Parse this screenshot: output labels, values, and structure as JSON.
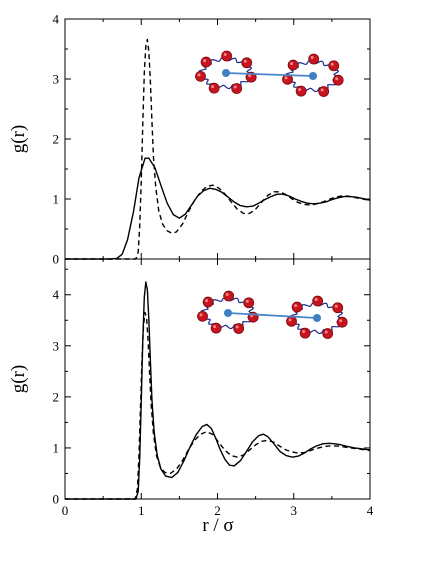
{
  "colors": {
    "curve": "#000000",
    "bead_red": "#c8141e",
    "chain_blue": "#1e2a8c",
    "bond_blue": "#4a86c8",
    "center_blue": "#3f7fc4"
  },
  "icons": {
    "top_inset": "two-ring-molecules-icon",
    "bottom_inset": "two-ring-molecules-icon"
  },
  "chart_data": [
    {
      "type": "line",
      "panel": "top",
      "ylabel": "g(r)",
      "xlabel": "",
      "xlim": [
        0,
        4
      ],
      "ylim": [
        0,
        4
      ],
      "x_ticks": [
        "0",
        "1",
        "2",
        "3",
        "4"
      ],
      "y_ticks": [
        "0",
        "1",
        "2",
        "3",
        "4"
      ],
      "grid": false,
      "legend": "none",
      "series": [
        {
          "style": "solid",
          "points": [
            [
              0,
              0
            ],
            [
              0.6,
              0
            ],
            [
              0.68,
              0.01
            ],
            [
              0.75,
              0.08
            ],
            [
              0.82,
              0.32
            ],
            [
              0.9,
              0.8
            ],
            [
              0.97,
              1.35
            ],
            [
              1.05,
              1.68
            ],
            [
              1.1,
              1.68
            ],
            [
              1.18,
              1.52
            ],
            [
              1.26,
              1.22
            ],
            [
              1.34,
              0.93
            ],
            [
              1.42,
              0.74
            ],
            [
              1.5,
              0.68
            ],
            [
              1.58,
              0.75
            ],
            [
              1.66,
              0.9
            ],
            [
              1.74,
              1.05
            ],
            [
              1.82,
              1.14
            ],
            [
              1.9,
              1.18
            ],
            [
              1.98,
              1.16
            ],
            [
              2.06,
              1.11
            ],
            [
              2.14,
              1.03
            ],
            [
              2.22,
              0.95
            ],
            [
              2.3,
              0.89
            ],
            [
              2.38,
              0.87
            ],
            [
              2.46,
              0.88
            ],
            [
              2.54,
              0.93
            ],
            [
              2.62,
              0.99
            ],
            [
              2.7,
              1.04
            ],
            [
              2.78,
              1.08
            ],
            [
              2.86,
              1.08
            ],
            [
              2.94,
              1.05
            ],
            [
              3.02,
              1.0
            ],
            [
              3.1,
              0.96
            ],
            [
              3.18,
              0.93
            ],
            [
              3.26,
              0.92
            ],
            [
              3.34,
              0.93
            ],
            [
              3.42,
              0.95
            ],
            [
              3.5,
              0.99
            ],
            [
              3.58,
              1.02
            ],
            [
              3.66,
              1.04
            ],
            [
              3.74,
              1.04
            ],
            [
              3.82,
              1.03
            ],
            [
              3.9,
              1.01
            ],
            [
              4.0,
              0.98
            ]
          ]
        },
        {
          "style": "dashed",
          "points": [
            [
              0,
              0
            ],
            [
              0.93,
              0
            ],
            [
              0.96,
              0.12
            ],
            [
              0.98,
              0.55
            ],
            [
              1.0,
              1.3
            ],
            [
              1.02,
              2.25
            ],
            [
              1.04,
              3.1
            ],
            [
              1.06,
              3.55
            ],
            [
              1.08,
              3.66
            ],
            [
              1.1,
              3.45
            ],
            [
              1.12,
              2.95
            ],
            [
              1.14,
              2.3
            ],
            [
              1.16,
              1.7
            ],
            [
              1.19,
              1.2
            ],
            [
              1.23,
              0.8
            ],
            [
              1.28,
              0.58
            ],
            [
              1.34,
              0.47
            ],
            [
              1.4,
              0.43
            ],
            [
              1.46,
              0.45
            ],
            [
              1.54,
              0.58
            ],
            [
              1.62,
              0.79
            ],
            [
              1.7,
              0.98
            ],
            [
              1.78,
              1.12
            ],
            [
              1.86,
              1.21
            ],
            [
              1.94,
              1.23
            ],
            [
              2.02,
              1.18
            ],
            [
              2.1,
              1.08
            ],
            [
              2.18,
              0.95
            ],
            [
              2.26,
              0.83
            ],
            [
              2.34,
              0.76
            ],
            [
              2.42,
              0.76
            ],
            [
              2.5,
              0.83
            ],
            [
              2.58,
              0.95
            ],
            [
              2.66,
              1.06
            ],
            [
              2.74,
              1.12
            ],
            [
              2.82,
              1.12
            ],
            [
              2.9,
              1.07
            ],
            [
              2.98,
              1.0
            ],
            [
              3.06,
              0.94
            ],
            [
              3.14,
              0.91
            ],
            [
              3.22,
              0.9
            ],
            [
              3.3,
              0.92
            ],
            [
              3.38,
              0.95
            ],
            [
              3.46,
              0.99
            ],
            [
              3.54,
              1.03
            ],
            [
              3.62,
              1.05
            ],
            [
              3.7,
              1.05
            ],
            [
              3.78,
              1.03
            ],
            [
              3.86,
              1.01
            ],
            [
              3.94,
              0.99
            ],
            [
              4.0,
              0.98
            ]
          ]
        }
      ]
    },
    {
      "type": "line",
      "panel": "bottom",
      "ylabel": "g(r)",
      "xlabel": "r / σ",
      "xlim": [
        0,
        4
      ],
      "ylim": [
        0,
        4.7
      ],
      "x_ticks": [
        "0",
        "1",
        "2",
        "3",
        "4"
      ],
      "y_ticks": [
        "0",
        "1",
        "2",
        "3",
        "4"
      ],
      "grid": false,
      "legend": "none",
      "series": [
        {
          "style": "solid",
          "points": [
            [
              0,
              0
            ],
            [
              0.93,
              0
            ],
            [
              0.96,
              0.15
            ],
            [
              0.98,
              0.8
            ],
            [
              1.0,
              1.9
            ],
            [
              1.02,
              3.1
            ],
            [
              1.04,
              3.95
            ],
            [
              1.06,
              4.25
            ],
            [
              1.08,
              4.1
            ],
            [
              1.1,
              3.5
            ],
            [
              1.12,
              2.7
            ],
            [
              1.14,
              1.95
            ],
            [
              1.17,
              1.3
            ],
            [
              1.21,
              0.85
            ],
            [
              1.26,
              0.58
            ],
            [
              1.32,
              0.45
            ],
            [
              1.4,
              0.42
            ],
            [
              1.48,
              0.52
            ],
            [
              1.56,
              0.75
            ],
            [
              1.64,
              1.02
            ],
            [
              1.72,
              1.26
            ],
            [
              1.8,
              1.42
            ],
            [
              1.86,
              1.46
            ],
            [
              1.92,
              1.38
            ],
            [
              1.98,
              1.18
            ],
            [
              2.04,
              0.95
            ],
            [
              2.1,
              0.77
            ],
            [
              2.16,
              0.66
            ],
            [
              2.22,
              0.65
            ],
            [
              2.3,
              0.75
            ],
            [
              2.38,
              0.93
            ],
            [
              2.46,
              1.12
            ],
            [
              2.54,
              1.24
            ],
            [
              2.6,
              1.27
            ],
            [
              2.66,
              1.22
            ],
            [
              2.74,
              1.08
            ],
            [
              2.82,
              0.93
            ],
            [
              2.9,
              0.85
            ],
            [
              2.98,
              0.82
            ],
            [
              3.06,
              0.84
            ],
            [
              3.14,
              0.9
            ],
            [
              3.22,
              0.98
            ],
            [
              3.3,
              1.04
            ],
            [
              3.38,
              1.08
            ],
            [
              3.46,
              1.09
            ],
            [
              3.54,
              1.08
            ],
            [
              3.62,
              1.06
            ],
            [
              3.7,
              1.03
            ],
            [
              3.8,
              1.0
            ],
            [
              3.9,
              0.98
            ],
            [
              4.0,
              0.96
            ]
          ]
        },
        {
          "style": "dashed",
          "points": [
            [
              0,
              0
            ],
            [
              0.92,
              0
            ],
            [
              0.95,
              0.2
            ],
            [
              0.97,
              0.85
            ],
            [
              0.99,
              1.8
            ],
            [
              1.01,
              2.75
            ],
            [
              1.03,
              3.4
            ],
            [
              1.05,
              3.65
            ],
            [
              1.07,
              3.55
            ],
            [
              1.09,
              3.1
            ],
            [
              1.11,
              2.45
            ],
            [
              1.13,
              1.85
            ],
            [
              1.16,
              1.28
            ],
            [
              1.2,
              0.85
            ],
            [
              1.25,
              0.62
            ],
            [
              1.31,
              0.52
            ],
            [
              1.38,
              0.5
            ],
            [
              1.46,
              0.58
            ],
            [
              1.54,
              0.75
            ],
            [
              1.62,
              0.97
            ],
            [
              1.7,
              1.15
            ],
            [
              1.78,
              1.27
            ],
            [
              1.86,
              1.32
            ],
            [
              1.94,
              1.26
            ],
            [
              2.02,
              1.1
            ],
            [
              2.1,
              0.95
            ],
            [
              2.18,
              0.85
            ],
            [
              2.26,
              0.82
            ],
            [
              2.34,
              0.86
            ],
            [
              2.42,
              0.96
            ],
            [
              2.5,
              1.06
            ],
            [
              2.58,
              1.13
            ],
            [
              2.66,
              1.15
            ],
            [
              2.74,
              1.11
            ],
            [
              2.82,
              1.03
            ],
            [
              2.9,
              0.96
            ],
            [
              2.98,
              0.92
            ],
            [
              3.06,
              0.9
            ],
            [
              3.14,
              0.91
            ],
            [
              3.22,
              0.95
            ],
            [
              3.3,
              0.99
            ],
            [
              3.38,
              1.02
            ],
            [
              3.46,
              1.04
            ],
            [
              3.54,
              1.04
            ],
            [
              3.62,
              1.03
            ],
            [
              3.7,
              1.01
            ],
            [
              3.8,
              0.99
            ],
            [
              3.9,
              0.97
            ],
            [
              4.0,
              0.95
            ]
          ]
        }
      ]
    }
  ]
}
